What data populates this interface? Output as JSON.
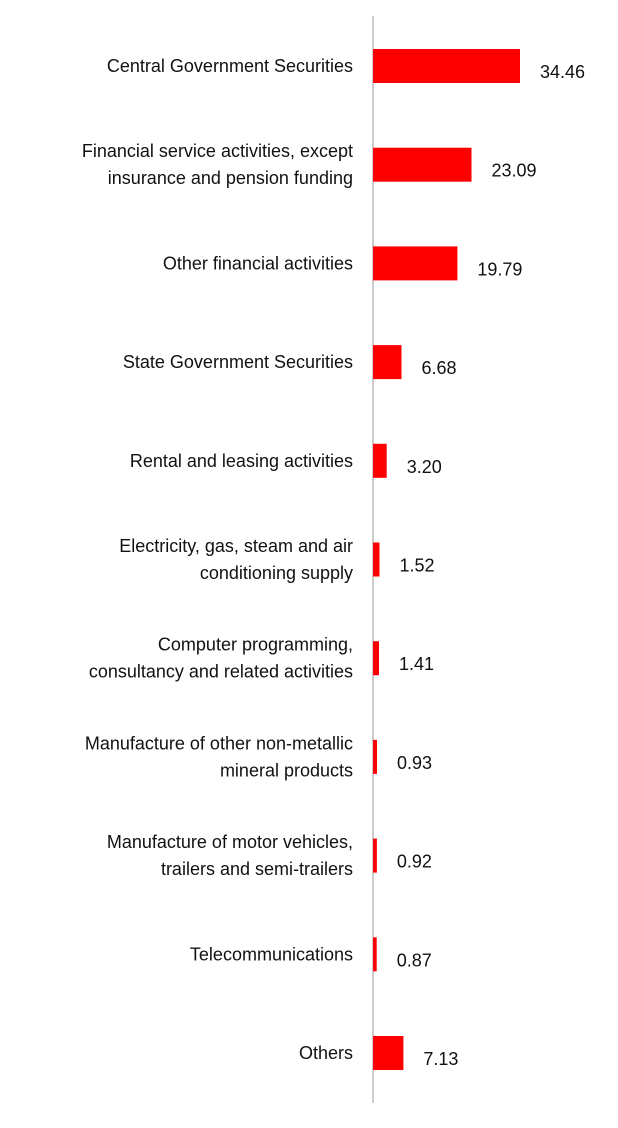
{
  "chart_data": {
    "type": "bar",
    "orientation": "horizontal",
    "title": "",
    "xlabel": "",
    "ylabel": "",
    "grid": false,
    "colors": {
      "bar": "#ff0000",
      "axis": "#cccccc",
      "text": "#111111"
    },
    "categories": [
      "Central Government Securities",
      "Financial service activities, except insurance and pension funding",
      "Other financial activities",
      "State Government Securities",
      "Rental and leasing activities",
      "Electricity, gas, steam and air conditioning supply",
      "Computer programming, consultancy and related activities",
      "Manufacture of other non-metallic mineral products",
      "Manufacture of motor vehicles, trailers and semi-trailers",
      "Telecommunications",
      "Others"
    ],
    "category_lines": [
      [
        "Central Government Securities"
      ],
      [
        "Financial service activities, except",
        "insurance and pension funding"
      ],
      [
        "Other financial activities"
      ],
      [
        "State Government Securities"
      ],
      [
        "Rental and leasing activities"
      ],
      [
        "Electricity, gas, steam and air",
        "conditioning supply"
      ],
      [
        "Computer programming,",
        "consultancy and related activities"
      ],
      [
        "Manufacture of other non-metallic",
        "mineral products"
      ],
      [
        "Manufacture of motor vehicles,",
        "trailers and semi-trailers"
      ],
      [
        "Telecommunications"
      ],
      [
        "Others"
      ]
    ],
    "values": [
      34.46,
      23.09,
      19.79,
      6.68,
      3.2,
      1.52,
      1.41,
      0.93,
      0.92,
      0.87,
      7.13
    ],
    "value_labels": [
      "34.46",
      "23.09",
      "19.79",
      "6.68",
      "3.20",
      "1.52",
      "1.41",
      "0.93",
      "0.92",
      "0.87",
      "7.13"
    ],
    "xlim": [
      0,
      34.46
    ]
  }
}
